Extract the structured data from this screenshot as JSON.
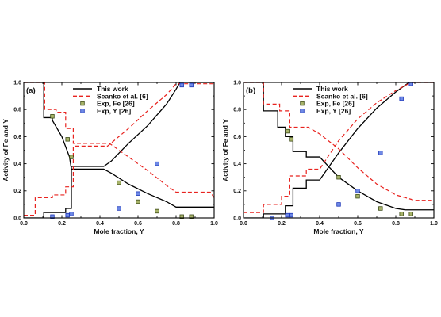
{
  "figure": {
    "colors": {
      "this_work": "#000000",
      "seanko": "#e8231f",
      "exp_fe_fill": "#a8b46a",
      "exp_fe_edge": "#3c4a16",
      "exp_y_fill": "#6f8ae6",
      "exp_y_edge": "#1d36b8"
    },
    "legend_labels": {
      "this_work": "This work",
      "seanko": "Seanko et al. [6]",
      "exp_fe": "Exp, Fe [26]",
      "exp_y": "Exp, Y [26]"
    }
  },
  "chart_data": [
    {
      "type": "line",
      "panel_label": "(a)",
      "xlabel": "Mole fraction, Y",
      "ylabel": "Activity of Fe and Y",
      "xlim": [
        0,
        1
      ],
      "ylim": [
        0,
        1
      ],
      "x_ticks": [
        "0.0",
        "0.2",
        "0.4",
        "0.6",
        "0.8",
        "1.0"
      ],
      "y_ticks": [
        "0.0",
        "0.2",
        "0.4",
        "0.6",
        "0.8",
        "1.0"
      ],
      "legend_position": "top-center",
      "grid": false,
      "series": [
        {
          "name": "This work",
          "style": "solid",
          "component": "Fe",
          "points": [
            [
              0.0,
              1.0
            ],
            [
              0.105,
              1.0
            ],
            [
              0.105,
              0.74
            ],
            [
              0.15,
              0.74
            ],
            [
              0.15,
              0.72
            ],
            [
              0.2,
              0.6
            ],
            [
              0.24,
              0.45
            ],
            [
              0.25,
              0.36
            ],
            [
              0.42,
              0.36
            ],
            [
              0.46,
              0.33
            ],
            [
              0.55,
              0.25
            ],
            [
              0.65,
              0.18
            ],
            [
              0.75,
              0.12
            ],
            [
              0.8,
              0.08
            ],
            [
              1.0,
              0.08
            ]
          ]
        },
        {
          "name": "This work",
          "style": "solid",
          "component": "Y",
          "points": [
            [
              0.0,
              0.0
            ],
            [
              0.105,
              0.0
            ],
            [
              0.105,
              0.04
            ],
            [
              0.22,
              0.04
            ],
            [
              0.22,
              0.07
            ],
            [
              0.25,
              0.07
            ],
            [
              0.25,
              0.38
            ],
            [
              0.42,
              0.38
            ],
            [
              0.46,
              0.42
            ],
            [
              0.55,
              0.55
            ],
            [
              0.65,
              0.68
            ],
            [
              0.75,
              0.84
            ],
            [
              0.8,
              0.95
            ],
            [
              0.82,
              1.0
            ],
            [
              1.0,
              1.0
            ]
          ]
        },
        {
          "name": "Seanko et al. [6]",
          "style": "dashed",
          "component": "Fe",
          "points": [
            [
              0.0,
              1.0
            ],
            [
              0.11,
              1.0
            ],
            [
              0.11,
              0.8
            ],
            [
              0.17,
              0.8
            ],
            [
              0.17,
              0.78
            ],
            [
              0.22,
              0.78
            ],
            [
              0.22,
              0.66
            ],
            [
              0.26,
              0.66
            ],
            [
              0.26,
              0.55
            ],
            [
              0.45,
              0.55
            ],
            [
              0.55,
              0.45
            ],
            [
              0.65,
              0.35
            ],
            [
              0.75,
              0.24
            ],
            [
              0.8,
              0.19
            ],
            [
              0.98,
              0.19
            ],
            [
              1.0,
              0.15
            ]
          ]
        },
        {
          "name": "Seanko et al. [6]",
          "style": "dashed",
          "component": "Y",
          "points": [
            [
              0.0,
              0.02
            ],
            [
              0.06,
              0.02
            ],
            [
              0.06,
              0.15
            ],
            [
              0.15,
              0.15
            ],
            [
              0.15,
              0.17
            ],
            [
              0.22,
              0.17
            ],
            [
              0.22,
              0.23
            ],
            [
              0.26,
              0.23
            ],
            [
              0.26,
              0.53
            ],
            [
              0.44,
              0.53
            ],
            [
              0.55,
              0.66
            ],
            [
              0.65,
              0.79
            ],
            [
              0.75,
              0.91
            ],
            [
              0.8,
              0.99
            ],
            [
              1.0,
              0.99
            ]
          ]
        },
        {
          "name": "Exp, Fe [26]",
          "style": "marker",
          "component": "Fe",
          "points": [
            [
              0.15,
              0.75
            ],
            [
              0.23,
              0.58
            ],
            [
              0.25,
              0.45
            ],
            [
              0.5,
              0.26
            ],
            [
              0.6,
              0.12
            ],
            [
              0.7,
              0.05
            ],
            [
              0.83,
              0.01
            ],
            [
              0.88,
              0.01
            ]
          ]
        },
        {
          "name": "Exp, Y [26]",
          "style": "marker",
          "component": "Y",
          "points": [
            [
              0.15,
              0.01
            ],
            [
              0.23,
              0.02
            ],
            [
              0.25,
              0.03
            ],
            [
              0.5,
              0.07
            ],
            [
              0.6,
              0.18
            ],
            [
              0.7,
              0.4
            ],
            [
              0.83,
              0.98
            ],
            [
              0.88,
              0.98
            ]
          ]
        }
      ]
    },
    {
      "type": "line",
      "panel_label": "(b)",
      "xlabel": "Mole fraction, Y",
      "ylabel": "Activity of Fe and Y",
      "xlim": [
        0,
        1
      ],
      "ylim": [
        0,
        1
      ],
      "x_ticks": [
        "0.0",
        "0.2",
        "0.4",
        "0.6",
        "0.8",
        "1.0"
      ],
      "y_ticks": [
        "0.0",
        "0.2",
        "0.4",
        "0.6",
        "0.8",
        "1.0"
      ],
      "legend_position": "top-center",
      "grid": false,
      "series": [
        {
          "name": "This work",
          "style": "solid",
          "component": "Fe",
          "points": [
            [
              0.0,
              1.0
            ],
            [
              0.105,
              1.0
            ],
            [
              0.105,
              0.79
            ],
            [
              0.18,
              0.79
            ],
            [
              0.18,
              0.67
            ],
            [
              0.22,
              0.67
            ],
            [
              0.22,
              0.6
            ],
            [
              0.26,
              0.6
            ],
            [
              0.26,
              0.49
            ],
            [
              0.33,
              0.49
            ],
            [
              0.33,
              0.45
            ],
            [
              0.4,
              0.45
            ],
            [
              0.5,
              0.3
            ],
            [
              0.6,
              0.2
            ],
            [
              0.7,
              0.12
            ],
            [
              0.8,
              0.07
            ],
            [
              0.85,
              0.06
            ],
            [
              1.0,
              0.06
            ]
          ]
        },
        {
          "name": "This work",
          "style": "solid",
          "component": "Y",
          "points": [
            [
              0.0,
              0.0
            ],
            [
              0.105,
              0.0
            ],
            [
              0.105,
              0.03
            ],
            [
              0.22,
              0.03
            ],
            [
              0.22,
              0.09
            ],
            [
              0.26,
              0.09
            ],
            [
              0.26,
              0.22
            ],
            [
              0.33,
              0.22
            ],
            [
              0.33,
              0.28
            ],
            [
              0.4,
              0.28
            ],
            [
              0.5,
              0.48
            ],
            [
              0.6,
              0.66
            ],
            [
              0.7,
              0.81
            ],
            [
              0.8,
              0.93
            ],
            [
              0.87,
              1.0
            ],
            [
              1.0,
              1.0
            ]
          ]
        },
        {
          "name": "Seanko et al. [6]",
          "style": "dashed",
          "component": "Fe",
          "points": [
            [
              0.0,
              1.0
            ],
            [
              0.105,
              1.0
            ],
            [
              0.105,
              0.84
            ],
            [
              0.19,
              0.84
            ],
            [
              0.19,
              0.79
            ],
            [
              0.24,
              0.79
            ],
            [
              0.24,
              0.67
            ],
            [
              0.34,
              0.67
            ],
            [
              0.4,
              0.62
            ],
            [
              0.5,
              0.51
            ],
            [
              0.6,
              0.37
            ],
            [
              0.7,
              0.25
            ],
            [
              0.8,
              0.17
            ],
            [
              0.9,
              0.13
            ],
            [
              1.0,
              0.13
            ]
          ]
        },
        {
          "name": "Seanko et al. [6]",
          "style": "dashed",
          "component": "Y",
          "points": [
            [
              0.0,
              0.04
            ],
            [
              0.105,
              0.04
            ],
            [
              0.105,
              0.1
            ],
            [
              0.2,
              0.1
            ],
            [
              0.2,
              0.16
            ],
            [
              0.24,
              0.16
            ],
            [
              0.24,
              0.31
            ],
            [
              0.33,
              0.31
            ],
            [
              0.33,
              0.36
            ],
            [
              0.4,
              0.36
            ],
            [
              0.5,
              0.57
            ],
            [
              0.6,
              0.73
            ],
            [
              0.7,
              0.85
            ],
            [
              0.8,
              0.94
            ],
            [
              0.88,
              1.0
            ],
            [
              1.0,
              1.0
            ]
          ]
        },
        {
          "name": "Exp, Fe [26]",
          "style": "marker",
          "component": "Fe",
          "points": [
            [
              0.23,
              0.64
            ],
            [
              0.25,
              0.58
            ],
            [
              0.5,
              0.3
            ],
            [
              0.6,
              0.16
            ],
            [
              0.72,
              0.07
            ],
            [
              0.83,
              0.03
            ],
            [
              0.88,
              0.03
            ]
          ]
        },
        {
          "name": "Exp, Y [26]",
          "style": "marker",
          "component": "Y",
          "points": [
            [
              0.15,
              0.0
            ],
            [
              0.23,
              0.02
            ],
            [
              0.25,
              0.02
            ],
            [
              0.5,
              0.1
            ],
            [
              0.6,
              0.2
            ],
            [
              0.72,
              0.48
            ],
            [
              0.83,
              0.88
            ],
            [
              0.88,
              0.99
            ]
          ]
        }
      ]
    }
  ]
}
